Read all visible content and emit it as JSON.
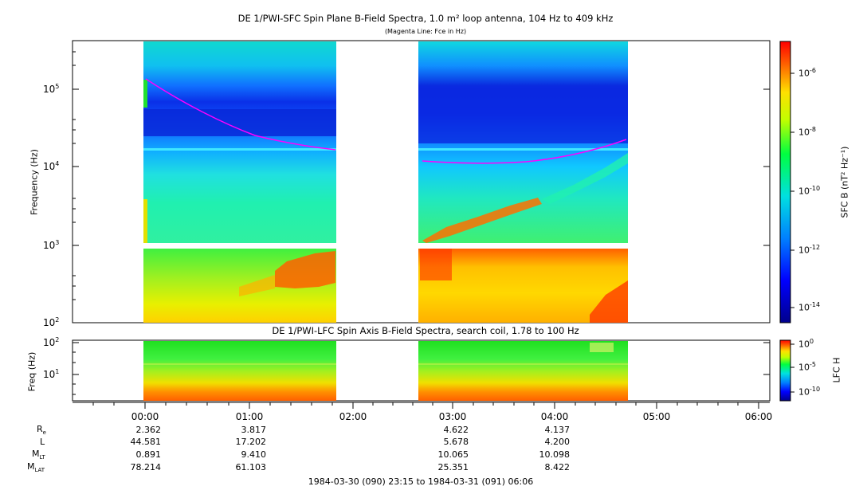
{
  "sfc": {
    "title": "DE 1/PWI-SFC  Spin Plane B-Field Spectra, 1.0 m² loop antenna, 104 Hz to 409 kHz",
    "subtitle": "(Magenta Line: Fce in Hz)",
    "ylabel": "Frequency (Hz)",
    "cbar_label": "SFC B (nT² Hz⁻¹)",
    "ytick_labels": [
      "10^5",
      "10^4",
      "10^3",
      "10^2"
    ],
    "cbar_ticks": [
      "10^-6",
      "10^-8",
      "10^-10",
      "10^-12",
      "10^-14"
    ]
  },
  "lfc": {
    "title": "DE 1/PWI-LFC  Spin Axis B-Field Spectra, search coil, 1.78 to 100 Hz",
    "ylabel": "Freq (Hz)",
    "cbar_label": "LFC H",
    "ytick_labels": [
      "10^2",
      "10^1"
    ],
    "cbar_ticks": [
      "10^0",
      "10^-5",
      "10^-10"
    ]
  },
  "time_axis": {
    "labels": [
      "00:00",
      "01:00",
      "02:00",
      "03:00",
      "04:00",
      "05:00",
      "06:00"
    ],
    "range_label": "1984-03-30 (090) 23:15 to 1984-03-31 (091) 06:06"
  },
  "ephemeris": {
    "rows": [
      {
        "label": "R",
        "sub": "e",
        "values": [
          "2.362",
          "3.817",
          "",
          "4.622",
          "4.137",
          "",
          ""
        ]
      },
      {
        "label": "L",
        "sub": "",
        "values": [
          "44.581",
          "17.202",
          "",
          "5.678",
          "4.200",
          "",
          ""
        ]
      },
      {
        "label": "M",
        "sub": "LT",
        "values": [
          "0.891",
          "9.410",
          "",
          "10.065",
          "10.098",
          "",
          ""
        ]
      },
      {
        "label": "M",
        "sub": "LAT",
        "values": [
          "78.214",
          "61.103",
          "",
          "25.351",
          "8.422",
          "",
          ""
        ]
      }
    ]
  },
  "chart_data": {
    "type": "heatmap",
    "title": "DE 1/PWI-SFC  Spin Plane B-Field Spectra, 1.0 m² loop antenna, 104 Hz to 409 kHz",
    "xlabel": "",
    "ylabel": "Frequency (Hz)",
    "xlim": [
      "1984-03-30T23:15",
      "1984-03-31T06:06"
    ],
    "ylim": [
      100,
      409000
    ],
    "yscale": "log",
    "data_intervals": [
      [
        "1984-03-30T23:59",
        "1984-03-31T01:51"
      ],
      [
        "1984-03-31T02:40",
        "1984-03-31T04:42"
      ]
    ],
    "fce_line": {
      "color": "#ff00ff",
      "segments": [
        {
          "t": [
            "23:59",
            "00:30",
            "01:00",
            "01:30",
            "01:51"
          ],
          "f": [
            140000,
            65000,
            32000,
            20000,
            16000
          ]
        },
        {
          "t": [
            "02:40",
            "03:10",
            "03:40",
            "04:10",
            "04:40"
          ],
          "f": [
            11500,
            11000,
            11800,
            14500,
            22000
          ]
        }
      ]
    },
    "colorbar": {
      "label": "SFC B (nT² Hz⁻¹)",
      "range": [
        "1e-15",
        "1e-5"
      ],
      "scale": "log"
    },
    "lfc": {
      "title": "DE 1/PWI-LFC  Spin Axis B-Field Spectra, search coil, 1.78 to 100 Hz",
      "ylabel": "Freq (Hz)",
      "ylim": [
        1.78,
        100
      ],
      "colorbar": {
        "label": "LFC H",
        "range": [
          "1e-12",
          "1e0"
        ],
        "scale": "log"
      }
    }
  }
}
